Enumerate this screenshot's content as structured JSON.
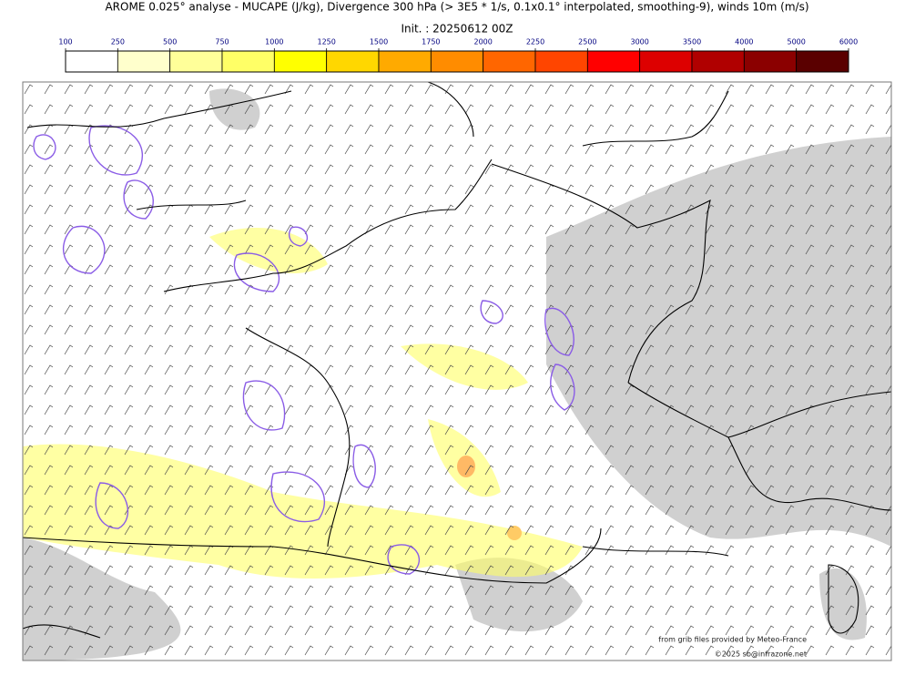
{
  "title": "AROME 0.025° analyse - MUCAPE (J/kg), Divergence 300 hPa (> 3E5 * 1/s, 0.1x0.1° interpolated, smoothing-9), winds 10m (m/s)",
  "init": "Init. : 20250612 00Z",
  "colorbar": {
    "ticks": [
      100,
      250,
      500,
      750,
      1000,
      1250,
      1500,
      1750,
      2000,
      2250,
      2500,
      3000,
      3500,
      4000,
      5000,
      6000
    ],
    "colors": [
      "#ffffff",
      "#ffffcc",
      "#ffff99",
      "#ffff66",
      "#ffff00",
      "#ffd700",
      "#ffaa00",
      "#ff8c00",
      "#ff6600",
      "#ff4500",
      "#ff0000",
      "#dd0000",
      "#b00000",
      "#8b0000",
      "#5a0000"
    ]
  },
  "credits": [
    "from grib files provided by Meteo-France",
    "©2025 sb@infrazone.net"
  ]
}
